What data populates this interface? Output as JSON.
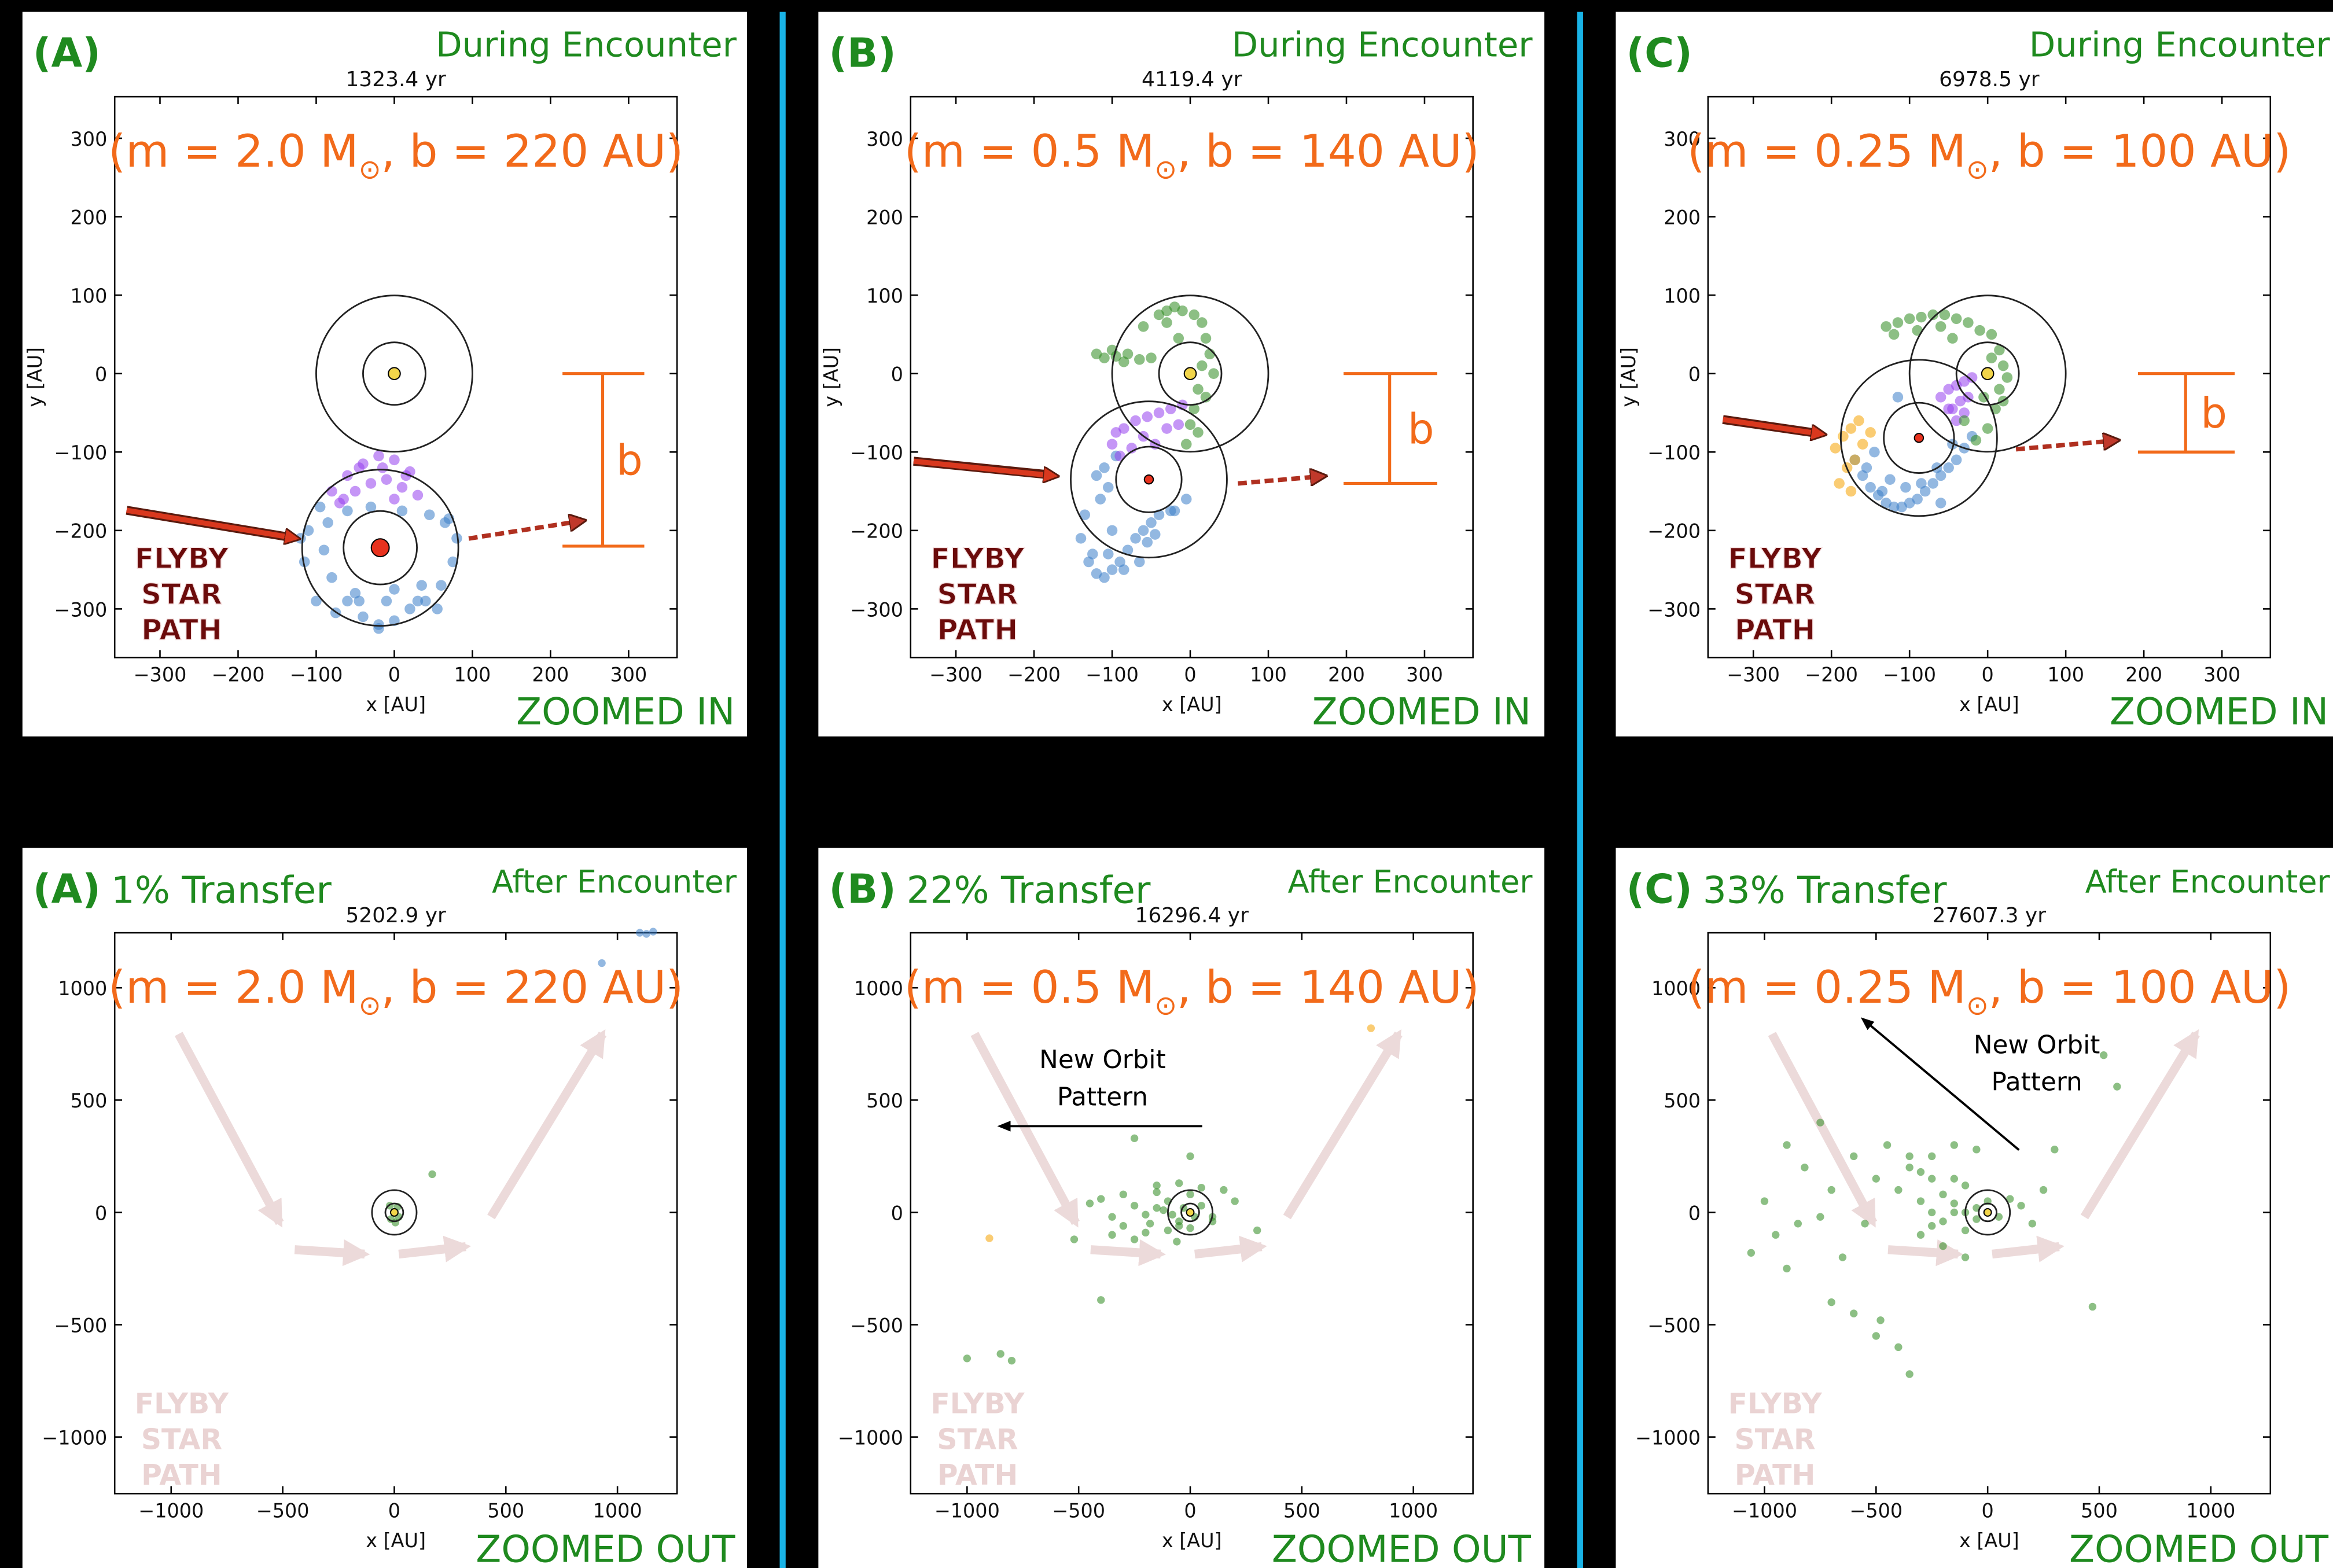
{
  "chart_data": [
    {
      "type": "scatter",
      "label": "(A)",
      "stage": "During Encounter",
      "title": "1323.4 yr",
      "params": {
        "before": "(m = 2.0 M",
        "sub": "⊙",
        "after": ", b = 220 AU)"
      },
      "xlabel": "x [AU]",
      "ylabel": "y [AU]",
      "xlim": [
        -358,
        362
      ],
      "ylim": [
        -362,
        353
      ],
      "xticks": [
        {
          "value": -300,
          "label": "−300"
        },
        {
          "value": -200,
          "label": "−200"
        },
        {
          "value": -100,
          "label": "−100"
        },
        0,
        100,
        200,
        300
      ],
      "yticks": [
        {
          "value": -300,
          "label": "−300"
        },
        {
          "value": -200,
          "label": "−200"
        },
        {
          "value": -100,
          "label": "−100"
        },
        0,
        100,
        200,
        300
      ],
      "series": [
        {
          "color": "#3a7dc9",
          "x": [
            -110,
            -95,
            -80,
            -60,
            -40,
            -20,
            0,
            20,
            40,
            60,
            75,
            -115,
            -100,
            -75,
            -50,
            -10,
            30,
            55,
            80,
            -90,
            -60,
            -30,
            10,
            45,
            70,
            -85,
            -45,
            0,
            35,
            -120,
            65,
            -20
          ],
          "y": [
            -200,
            -170,
            -260,
            -290,
            -310,
            -320,
            -315,
            -300,
            -290,
            -270,
            -240,
            -240,
            -290,
            -305,
            -280,
            -290,
            -290,
            -300,
            -210,
            -225,
            -175,
            -170,
            -175,
            -180,
            -185,
            -190,
            -290,
            -275,
            -270,
            -210,
            -190,
            -325
          ]
        },
        {
          "color": "#9540ee",
          "x": [
            -80,
            -60,
            -40,
            -20,
            0,
            20,
            -70,
            -50,
            -30,
            -10,
            10,
            30,
            -45,
            -15,
            15,
            -65,
            0
          ],
          "y": [
            -150,
            -130,
            -115,
            -105,
            -110,
            -125,
            -165,
            -150,
            -140,
            -135,
            -145,
            -155,
            -120,
            -120,
            -130,
            -160,
            -160
          ]
        }
      ],
      "stars": [
        {
          "x": 0,
          "y": 0,
          "color": "#f2d54a",
          "rings": [
            100,
            40
          ]
        },
        {
          "x": -18,
          "y": -222,
          "color": "#e8321e",
          "rings": [
            100,
            47
          ]
        }
      ],
      "impact_parameter": 220,
      "b_label": "b",
      "path_label": [
        "FLYBY",
        "STAR",
        "PATH"
      ],
      "zoom": "ZOOMED IN"
    },
    {
      "type": "scatter",
      "label": "(B)",
      "stage": "During Encounter",
      "title": "4119.4 yr",
      "params": {
        "before": "(m = 0.5 M",
        "sub": "⊙",
        "after": ", b = 140 AU)"
      },
      "xlabel": "x [AU]",
      "ylabel": "y [AU]",
      "xlim": [
        -358,
        362
      ],
      "ylim": [
        -362,
        353
      ],
      "xticks": [
        {
          "value": -300,
          "label": "−300"
        },
        {
          "value": -200,
          "label": "−200"
        },
        {
          "value": -100,
          "label": "−100"
        },
        0,
        100,
        200,
        300
      ],
      "yticks": [
        {
          "value": -300,
          "label": "−300"
        },
        {
          "value": -200,
          "label": "−200"
        },
        {
          "value": -100,
          "label": "−100"
        },
        0,
        100,
        200,
        300
      ],
      "series": [
        {
          "color": "#3a7dc9",
          "x": [
            -140,
            -130,
            -120,
            -110,
            -100,
            -90,
            -80,
            -70,
            -60,
            -50,
            -40,
            -20,
            -135,
            -115,
            -105,
            -95,
            -55,
            -25,
            -125,
            -105,
            -85,
            -65,
            -45,
            -5,
            -100,
            -120,
            -110
          ],
          "y": [
            -210,
            -240,
            -255,
            -260,
            -250,
            -240,
            -225,
            -210,
            -200,
            -190,
            -180,
            -175,
            -180,
            -160,
            -145,
            -105,
            -215,
            -175,
            -230,
            -230,
            -250,
            -240,
            -205,
            -160,
            -200,
            -130,
            -120
          ]
        },
        {
          "color": "#9540ee",
          "x": [
            -100,
            -85,
            -70,
            -55,
            -40,
            -25,
            -10,
            -90,
            -60,
            -30,
            -75,
            -45,
            -15,
            -95
          ],
          "y": [
            -90,
            -70,
            -60,
            -55,
            -50,
            -45,
            -40,
            -105,
            -80,
            -70,
            -95,
            -90,
            -65,
            -75
          ]
        },
        {
          "color": "#2e8b1f",
          "x": [
            -120,
            -110,
            -95,
            -80,
            -65,
            -50,
            -40,
            -30,
            -20,
            -10,
            5,
            15,
            20,
            25,
            15,
            10,
            5,
            0,
            -5,
            30,
            -60,
            -85,
            -100,
            -30,
            20,
            -15,
            10
          ],
          "y": [
            25,
            20,
            22,
            25,
            18,
            20,
            75,
            80,
            85,
            80,
            75,
            65,
            45,
            25,
            10,
            -20,
            -45,
            -65,
            -90,
            0,
            60,
            15,
            30,
            65,
            -30,
            45,
            -75
          ]
        }
      ],
      "stars": [
        {
          "x": 0,
          "y": 0,
          "color": "#f2d54a",
          "rings": [
            100,
            40
          ]
        },
        {
          "x": -53,
          "y": -135,
          "color": "#e8321e",
          "rings": [
            100,
            42
          ]
        }
      ],
      "impact_parameter": 140,
      "b_label": "b",
      "path_label": [
        "FLYBY",
        "STAR",
        "PATH"
      ],
      "zoom": "ZOOMED IN"
    },
    {
      "type": "scatter",
      "label": "(C)",
      "stage": "During Encounter",
      "title": "6978.5 yr",
      "params": {
        "before": "(m = 0.25 M",
        "sub": "⊙",
        "after": ", b = 100 AU)"
      },
      "xlabel": "x [AU]",
      "ylabel": "y [AU]",
      "xlim": [
        -358,
        362
      ],
      "ylim": [
        -362,
        353
      ],
      "xticks": [
        {
          "value": -300,
          "label": "−300"
        },
        {
          "value": -200,
          "label": "−200"
        },
        {
          "value": -100,
          "label": "−100"
        },
        0,
        100,
        200,
        300
      ],
      "yticks": [
        {
          "value": -300,
          "label": "−300"
        },
        {
          "value": -200,
          "label": "−200"
        },
        {
          "value": -100,
          "label": "−100"
        },
        0,
        100,
        200,
        300
      ],
      "series": [
        {
          "color": "#3a7dc9",
          "x": [
            -170,
            -160,
            -150,
            -140,
            -130,
            -120,
            -110,
            -100,
            -90,
            -80,
            -70,
            -60,
            -50,
            -40,
            -30,
            -20,
            -145,
            -125,
            -105,
            -85,
            -65,
            -45,
            -155,
            -135,
            -60,
            -115
          ],
          "y": [
            -110,
            -130,
            -145,
            -155,
            -165,
            -170,
            -170,
            -165,
            -160,
            -150,
            -140,
            -130,
            -120,
            -110,
            -95,
            -80,
            -100,
            -135,
            -145,
            -140,
            -120,
            -90,
            -120,
            -150,
            -165,
            -30
          ]
        },
        {
          "color": "#f5a300",
          "x": [
            -195,
            -185,
            -175,
            -165,
            -180,
            -170,
            -160,
            -190,
            -150,
            -175
          ],
          "y": [
            -95,
            -80,
            -70,
            -60,
            -120,
            -110,
            -90,
            -140,
            -75,
            -150
          ]
        },
        {
          "color": "#9540ee",
          "x": [
            -60,
            -50,
            -40,
            -30,
            -20,
            -45,
            -35,
            -25,
            -50,
            -40,
            -30
          ],
          "y": [
            -30,
            -20,
            -15,
            -10,
            -5,
            -45,
            -35,
            -30,
            -45,
            -60,
            -50
          ]
        },
        {
          "color": "#2e8b1f",
          "x": [
            -130,
            -115,
            -100,
            -85,
            -70,
            -55,
            -40,
            -25,
            -10,
            5,
            15,
            20,
            15,
            10,
            0,
            -15,
            -30,
            -5,
            -120,
            -90,
            -60,
            -45,
            25,
            20,
            5
          ],
          "y": [
            60,
            65,
            70,
            72,
            75,
            75,
            70,
            65,
            55,
            50,
            30,
            10,
            -20,
            -45,
            -70,
            -85,
            -60,
            -30,
            50,
            55,
            60,
            45,
            -5,
            -35,
            20
          ]
        }
      ],
      "stars": [
        {
          "x": 0,
          "y": 0,
          "color": "#f2d54a",
          "rings": [
            100,
            40
          ]
        },
        {
          "x": -88,
          "y": -82,
          "color": "#e8321e",
          "rings": [
            100,
            45
          ]
        }
      ],
      "impact_parameter": 100,
      "b_label": "b",
      "path_label": [
        "FLYBY",
        "STAR",
        "PATH"
      ],
      "zoom": "ZOOMED IN"
    },
    {
      "type": "scatter",
      "label": "(A)",
      "transfer": "1% Transfer",
      "stage": "After Encounter",
      "title": "5202.9 yr",
      "params": {
        "before": "(m = 2.0 M",
        "sub": "⊙",
        "after": ", b = 220 AU)"
      },
      "xlabel": "x [AU]",
      "xlim": [
        -1253,
        1267
      ],
      "ylim": [
        -1252,
        1245
      ],
      "xticks": [
        {
          "value": -1000,
          "label": "−1000"
        },
        {
          "value": -500,
          "label": "−500"
        },
        0,
        500,
        1000
      ],
      "yticks": [
        {
          "value": -1000,
          "label": "−1000"
        },
        {
          "value": -500,
          "label": "−500"
        },
        0,
        500,
        1000
      ],
      "series": [
        {
          "color": "#2e8b1f",
          "x": [
            -20,
            15,
            20,
            -15,
            5,
            170
          ],
          "y": [
            30,
            25,
            -20,
            -30,
            -45,
            170
          ]
        },
        {
          "color": "#3a7dc9",
          "x": [
            930,
            1100,
            1130,
            1160
          ],
          "y": [
            1110,
            1245,
            1240,
            1250
          ]
        }
      ],
      "stars": [
        {
          "x": 0,
          "y": 0,
          "color": "#f2d54a",
          "rings": [
            100,
            40
          ]
        }
      ],
      "path_label": [
        "FLYBY",
        "STAR",
        "PATH"
      ],
      "zoom": "ZOOMED OUT"
    },
    {
      "type": "scatter",
      "label": "(B)",
      "transfer": "22% Transfer",
      "stage": "After Encounter",
      "title": "16296.4 yr",
      "params": {
        "before": "(m = 0.5 M",
        "sub": "⊙",
        "after": ", b = 140 AU)"
      },
      "xlabel": "x [AU]",
      "xlim": [
        -1253,
        1267
      ],
      "ylim": [
        -1252,
        1245
      ],
      "xticks": [
        {
          "value": -1000,
          "label": "−1000"
        },
        {
          "value": -500,
          "label": "−500"
        },
        0,
        500,
        1000
      ],
      "yticks": [
        {
          "value": -1000,
          "label": "−1000"
        },
        {
          "value": -500,
          "label": "−500"
        },
        0,
        500,
        1000
      ],
      "series": [
        {
          "color": "#2e8b1f",
          "x": [
            -450,
            -400,
            -350,
            -300,
            -250,
            -200,
            -150,
            -100,
            -50,
            0,
            50,
            100,
            150,
            200,
            -300,
            -200,
            -150,
            -100,
            -50,
            0,
            -250,
            -150,
            -50,
            50,
            -350,
            -120,
            -80,
            -30,
            20,
            -180,
            -250,
            -400,
            -1000,
            -850,
            -800,
            -520,
            -60,
            0,
            100,
            300
          ],
          "y": [
            40,
            60,
            -20,
            80,
            30,
            -10,
            120,
            50,
            -40,
            80,
            30,
            -20,
            100,
            50,
            -60,
            -90,
            20,
            -80,
            -60,
            -70,
            -120,
            90,
            130,
            110,
            -100,
            10,
            -10,
            20,
            -20,
            -50,
            330,
            -390,
            -650,
            -630,
            -660,
            -120,
            -130,
            250,
            -40,
            -80
          ]
        },
        {
          "color": "#f5a300",
          "x": [
            -900,
            810
          ],
          "y": [
            -115,
            820
          ]
        }
      ],
      "stars": [
        {
          "x": 0,
          "y": 0,
          "color": "#f2d54a",
          "rings": [
            100,
            40
          ]
        }
      ],
      "note": [
        "New Orbit",
        "Pattern"
      ],
      "path_label": [
        "FLYBY",
        "STAR",
        "PATH"
      ],
      "zoom": "ZOOMED OUT"
    },
    {
      "type": "scatter",
      "label": "(C)",
      "transfer": "33% Transfer",
      "stage": "After Encounter",
      "title": "27607.3 yr",
      "params": {
        "before": "(m = 0.25 M",
        "sub": "⊙",
        "after": ", b = 100 AU)"
      },
      "xlabel": "x [AU]",
      "xlim": [
        -1253,
        1267
      ],
      "ylim": [
        -1252,
        1245
      ],
      "xticks": [
        {
          "value": -1000,
          "label": "−1000"
        },
        {
          "value": -500,
          "label": "−500"
        },
        0,
        500,
        1000
      ],
      "yticks": [
        {
          "value": -1000,
          "label": "−1000"
        },
        {
          "value": -500,
          "label": "−500"
        },
        0,
        500,
        1000
      ],
      "series": [
        {
          "color": "#2e8b1f",
          "x": [
            -1000,
            -950,
            -900,
            -820,
            -750,
            -700,
            -650,
            -600,
            -550,
            -500,
            -450,
            -400,
            -350,
            -300,
            -250,
            -200,
            -150,
            -100,
            -50,
            0,
            50,
            100,
            150,
            200,
            250,
            -300,
            -250,
            -200,
            -150,
            -100,
            -50,
            -350,
            -250,
            -150,
            -50,
            -200,
            -100,
            -700,
            -900,
            -600,
            -500,
            -850,
            -750,
            -1060,
            -480,
            -400,
            -350,
            300,
            470,
            520,
            580,
            -250,
            -300,
            -100,
            -150
          ],
          "y": [
            50,
            -100,
            300,
            200,
            400,
            100,
            -200,
            250,
            -50,
            150,
            300,
            100,
            200,
            50,
            150,
            80,
            0,
            120,
            -30,
            50,
            -20,
            60,
            30,
            -50,
            100,
            -100,
            0,
            -40,
            150,
            -80,
            20,
            250,
            250,
            300,
            280,
            -150,
            -200,
            -400,
            -250,
            -450,
            -550,
            -50,
            -20,
            -180,
            -480,
            -600,
            -720,
            280,
            -420,
            700,
            560,
            -60,
            180,
            0,
            40
          ]
        }
      ],
      "stars": [
        {
          "x": 0,
          "y": 0,
          "color": "#f2d54a",
          "rings": [
            100,
            40
          ]
        }
      ],
      "note": [
        "New Orbit",
        "Pattern"
      ],
      "path_label": [
        "FLYBY",
        "STAR",
        "PATH"
      ],
      "zoom": "ZOOMED OUT"
    }
  ]
}
